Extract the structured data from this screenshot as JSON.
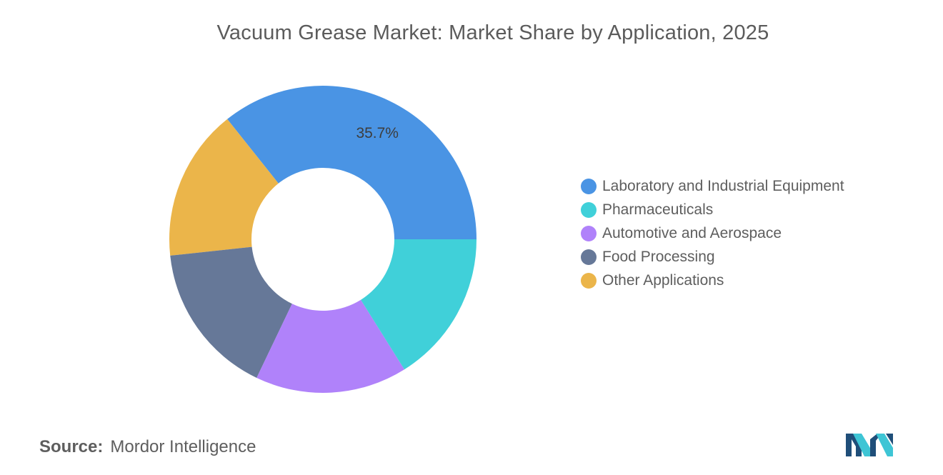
{
  "chart_data": {
    "type": "pie",
    "donut": true,
    "title": "Vacuum Grease Market: Market Share by Application, 2025",
    "series": [
      {
        "name": "Laboratory and Industrial Equipment",
        "value": 35.7,
        "color": "#4a94e4",
        "label": "35.7%"
      },
      {
        "name": "Other Applications",
        "value": 16.0,
        "color": "#ebb54a",
        "label": ""
      },
      {
        "name": "Food Processing",
        "value": 16.2,
        "color": "#667898",
        "label": ""
      },
      {
        "name": "Automotive and Aerospace",
        "value": 16.0,
        "color": "#b082fa",
        "label": ""
      },
      {
        "name": "Pharmaceuticals",
        "value": 16.1,
        "color": "#40d0d9",
        "label": ""
      }
    ],
    "legend_order": [
      "Laboratory and Industrial Equipment",
      "Pharmaceuticals",
      "Automotive and Aerospace",
      "Food Processing",
      "Other Applications"
    ],
    "legend_position": "right"
  },
  "source": {
    "label": "Source:",
    "value": "Mordor Intelligence"
  },
  "logo": {
    "icon": "mordor-intelligence-logo-icon",
    "colors": [
      "#1f4e79",
      "#3ec5d5"
    ]
  }
}
